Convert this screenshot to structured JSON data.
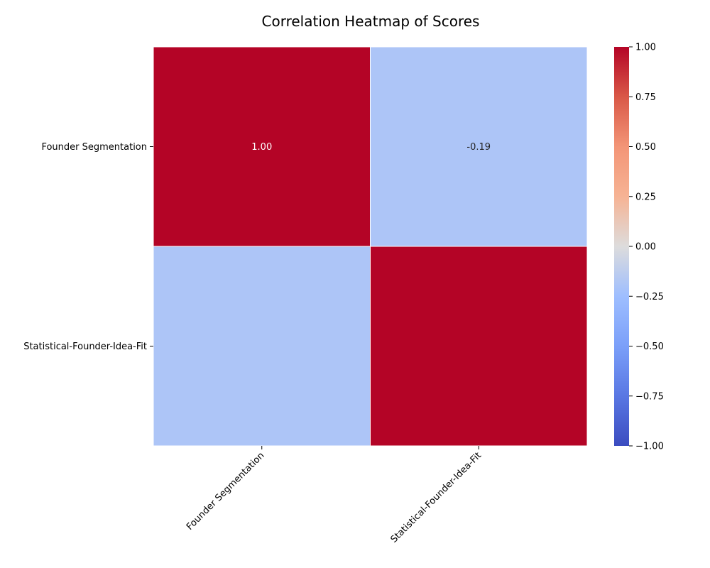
{
  "chart_data": {
    "type": "heatmap",
    "title": "Correlation Heatmap of Scores",
    "row_labels": [
      "Founder Segmentation",
      "Statistical-Founder-Idea-Fit"
    ],
    "col_labels": [
      "Founder Segmentation",
      "Statistical-Founder-Idea-Fit"
    ],
    "values": [
      [
        1.0,
        -0.19
      ],
      [
        -0.19,
        1.0
      ]
    ],
    "annotations": [
      [
        "1.00",
        "-0.19"
      ],
      [
        "",
        ""
      ]
    ],
    "colormap": "coolwarm",
    "vmin": -1.0,
    "vmax": 1.0,
    "colorbar_ticks": [
      "1.00",
      "0.75",
      "0.50",
      "0.25",
      "0.00",
      "−0.25",
      "−0.50",
      "−0.75",
      "−1.00"
    ],
    "colorbar_tick_values": [
      1.0,
      0.75,
      0.5,
      0.25,
      0.0,
      -0.25,
      -0.5,
      -0.75,
      -1.0
    ],
    "grid_line_color": "#ffffff"
  }
}
